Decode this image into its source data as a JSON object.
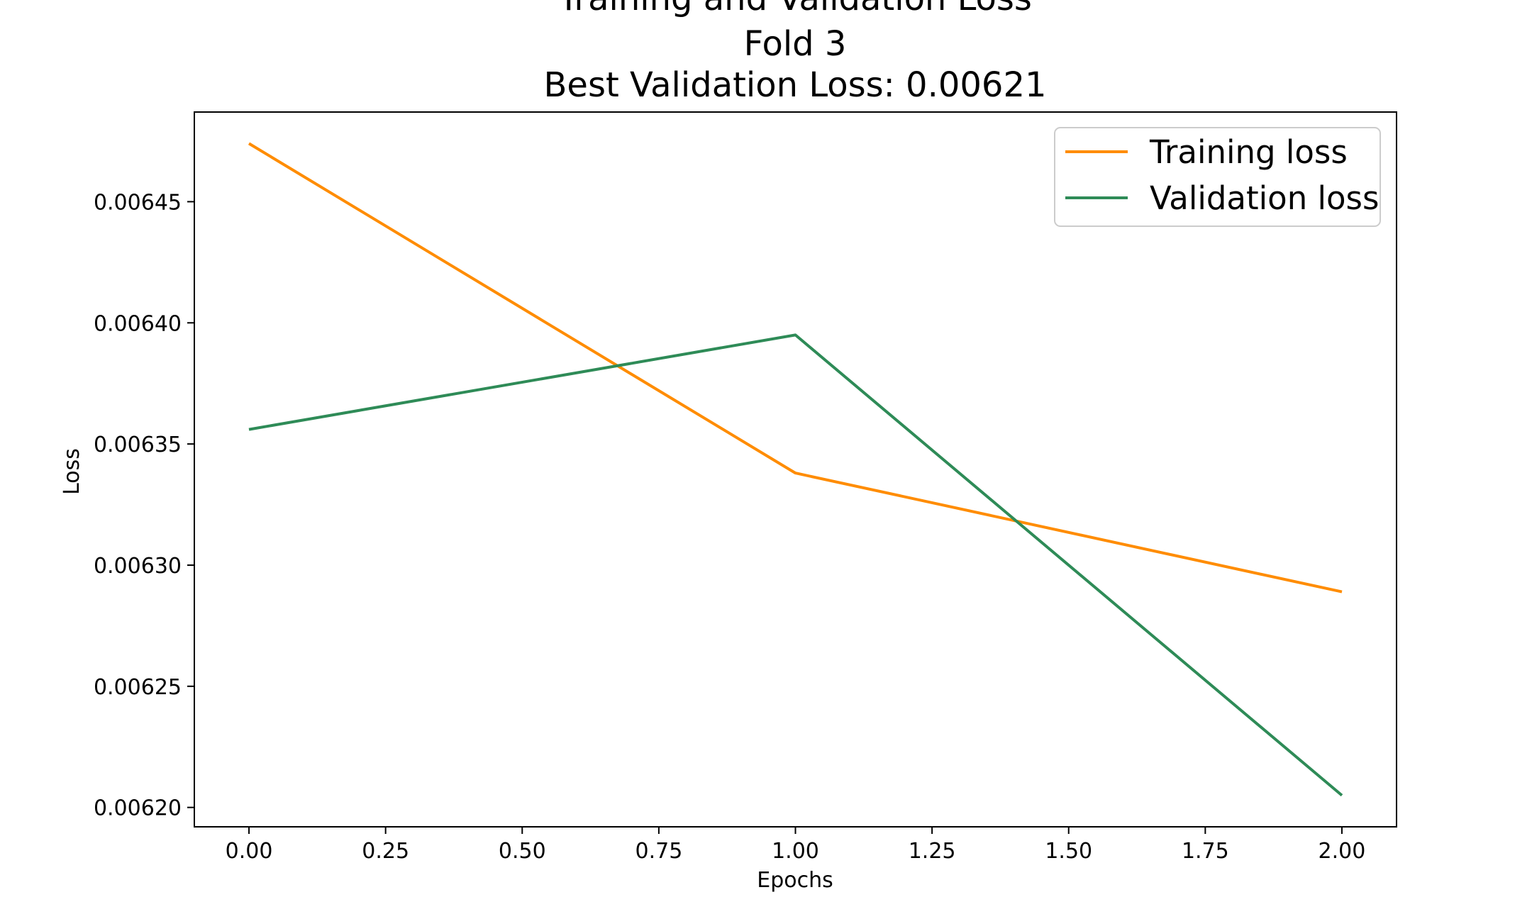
{
  "chart_data": {
    "type": "line",
    "title_lines": [
      "Training and Validation Loss",
      "Fold 3",
      "Best Validation Loss: 0.00621"
    ],
    "xlabel": "Epochs",
    "ylabel": "Loss",
    "xlim": [
      -0.1,
      2.1
    ],
    "ylim": [
      0.006192,
      0.006487
    ],
    "xticks": [
      0.0,
      0.25,
      0.5,
      0.75,
      1.0,
      1.25,
      1.5,
      1.75,
      2.0
    ],
    "xtick_labels": [
      "0.00",
      "0.25",
      "0.50",
      "0.75",
      "1.00",
      "1.25",
      "1.50",
      "1.75",
      "2.00"
    ],
    "yticks": [
      0.0062,
      0.00625,
      0.0063,
      0.00635,
      0.0064,
      0.00645
    ],
    "ytick_labels": [
      "0.00620",
      "0.00625",
      "0.00630",
      "0.00635",
      "0.00640",
      "0.00645"
    ],
    "x": [
      0,
      1,
      2
    ],
    "series": [
      {
        "name": "Training loss",
        "color": "#ff8c00",
        "values": [
          0.006474,
          0.006338,
          0.006289
        ]
      },
      {
        "name": "Validation loss",
        "color": "#2e8b57",
        "values": [
          0.006356,
          0.006395,
          0.006205
        ]
      }
    ],
    "legend": "top-right",
    "grid": false
  }
}
